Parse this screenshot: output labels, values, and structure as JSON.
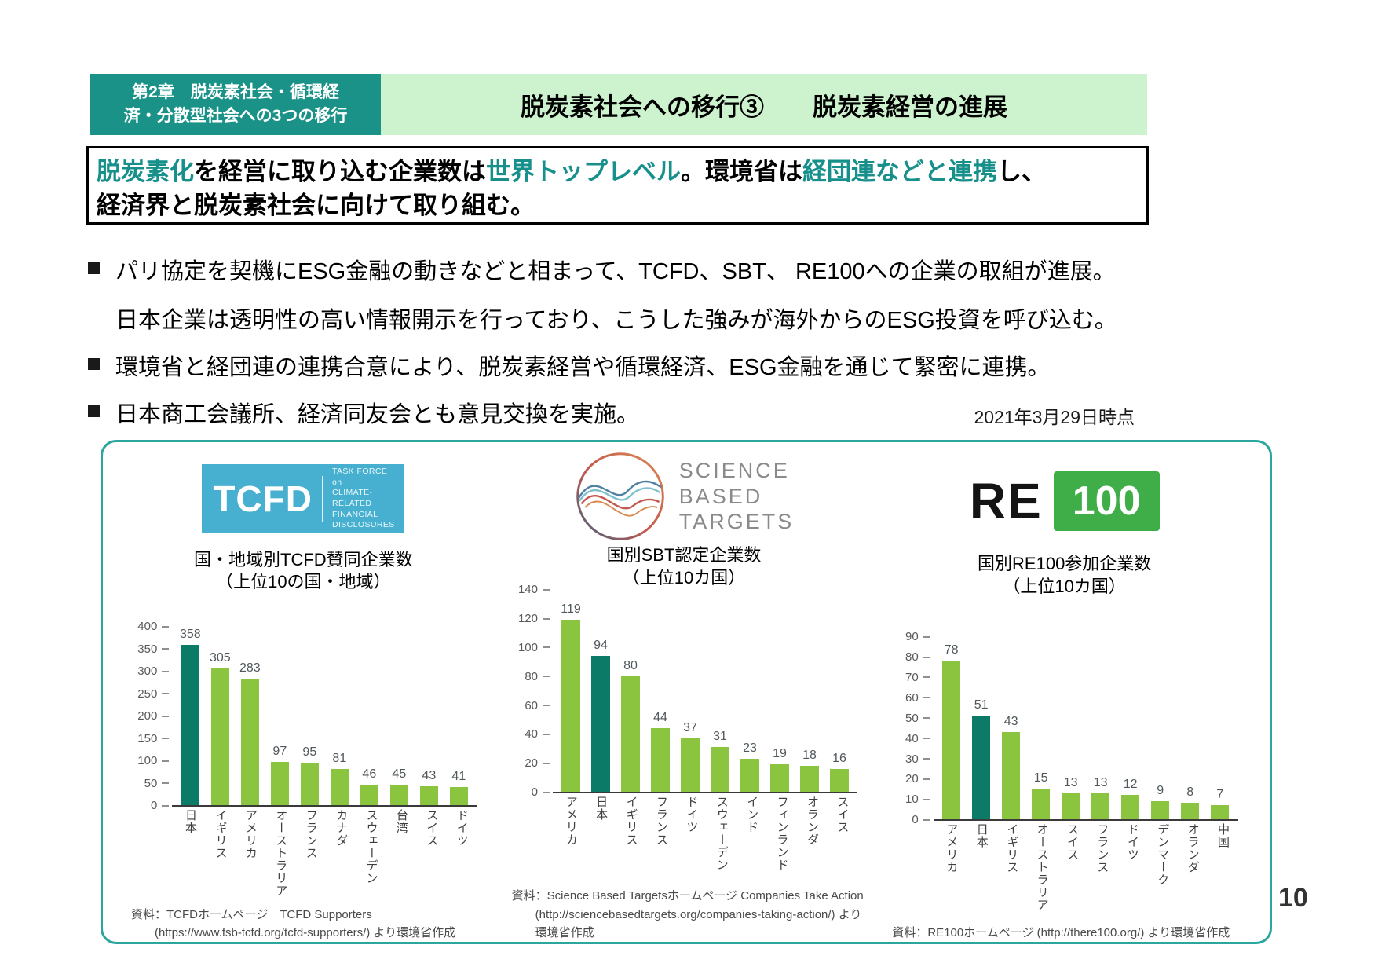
{
  "page": {
    "number": "10"
  },
  "header": {
    "chapter_line1": "第2章　脱炭素社会・循環経",
    "chapter_line2": "済・分散型社会への3つの移行",
    "title": "脱炭素社会への移行③　　脱炭素経営の進展"
  },
  "summary": {
    "l1_accent1": "脱炭素化",
    "l1_plain1": "を経営に取り込む企業数は",
    "l1_accent2": "世界トップレベル",
    "l1_plain2": "。環境省は",
    "l1_accent3": "経団連などと連携",
    "l1_plain3": "し、",
    "line2": "経済界と脱炭素社会に向けて取り組む。"
  },
  "bullets": [
    {
      "line1": "パリ協定を契機にESG金融の動きなどと相まって、TCFD、SBT、 RE100への企業の取組が進展。",
      "line2": "日本企業は透明性の高い情報開示を行っており、こうした強みが海外からのESG投資を呼び込む。"
    },
    {
      "line1": "環境省と経団連の連携合意により、脱炭素経営や循環経済、ESG金融を通じて緊密に連携。"
    },
    {
      "line1": "日本商工会議所、経済同友会とも意見交換を実施。"
    }
  ],
  "date_note": "2021年3月29日時点",
  "logos": {
    "tcfd": {
      "acronym": "TCFD",
      "side_lines": [
        "TASK FORCE on",
        "CLIMATE-RELATED",
        "FINANCIAL",
        "DISCLOSURES"
      ]
    },
    "sbt": {
      "line1": "SCIENCE",
      "line2": "BASED",
      "line3": "TARGETS"
    },
    "re100": {
      "re": "RE",
      "hundred": "100"
    }
  },
  "colors": {
    "header_teal": "#1A9287",
    "header_light_green": "#CDF3CE",
    "accent_teal": "#17908C",
    "bar_green": "#8BC53F",
    "bar_dark_teal": "#0B7A66",
    "panel_border": "#2BA69F",
    "tcfd_blue": "#47AFCF",
    "re100_green": "#3FAE49"
  },
  "chart_data": [
    {
      "type": "bar",
      "title_line1": "国・地域別TCFD賛同企業数",
      "title_line2": "（上位10の国・地域）",
      "categories": [
        "日本",
        "イギリス",
        "アメリカ",
        "オーストラリア",
        "フランス",
        "カナダ",
        "スウェーデン",
        "台湾",
        "スイス",
        "ドイツ"
      ],
      "values": [
        358,
        305,
        283,
        97,
        95,
        81,
        46,
        45,
        43,
        41
      ],
      "highlight_index": 0,
      "ylim": [
        0,
        400
      ],
      "ytick_step": 50,
      "grid": false,
      "legend": "none",
      "source_lines": [
        "資料：TCFDホームページ　TCFD Supporters",
        "(https://www.fsb-tcfd.org/tcfd-supporters/) より環境省作成"
      ]
    },
    {
      "type": "bar",
      "title_line1": "国別SBT認定企業数",
      "title_line2": "（上位10カ国）",
      "categories": [
        "アメリカ",
        "日本",
        "イギリス",
        "フランス",
        "ドイツ",
        "スウェーデン",
        "インド",
        "フィンランド",
        "オランダ",
        "スイス"
      ],
      "values": [
        119,
        94,
        80,
        44,
        37,
        31,
        23,
        19,
        18,
        16
      ],
      "highlight_index": 1,
      "ylim": [
        0,
        140
      ],
      "ytick_step": 20,
      "grid": false,
      "legend": "none",
      "source_lines": [
        "資料：Science Based Targetsホームページ Companies Take Action",
        "(http://sciencebasedtargets.org/companies-taking-action/) より",
        "環境省作成"
      ]
    },
    {
      "type": "bar",
      "title_line1": "国別RE100参加企業数",
      "title_line2": "（上位10カ国）",
      "categories": [
        "アメリカ",
        "日本",
        "イギリス",
        "オーストラリア",
        "スイス",
        "フランス",
        "ドイツ",
        "デンマーク",
        "オランダ",
        "中国"
      ],
      "values": [
        78,
        51,
        43,
        15,
        13,
        13,
        12,
        9,
        8,
        7
      ],
      "highlight_index": 1,
      "ylim": [
        0,
        90
      ],
      "ytick_step": 10,
      "grid": false,
      "legend": "none",
      "source_lines": [
        "資料：RE100ホームページ (http://there100.org/) より環境省作成"
      ]
    }
  ]
}
